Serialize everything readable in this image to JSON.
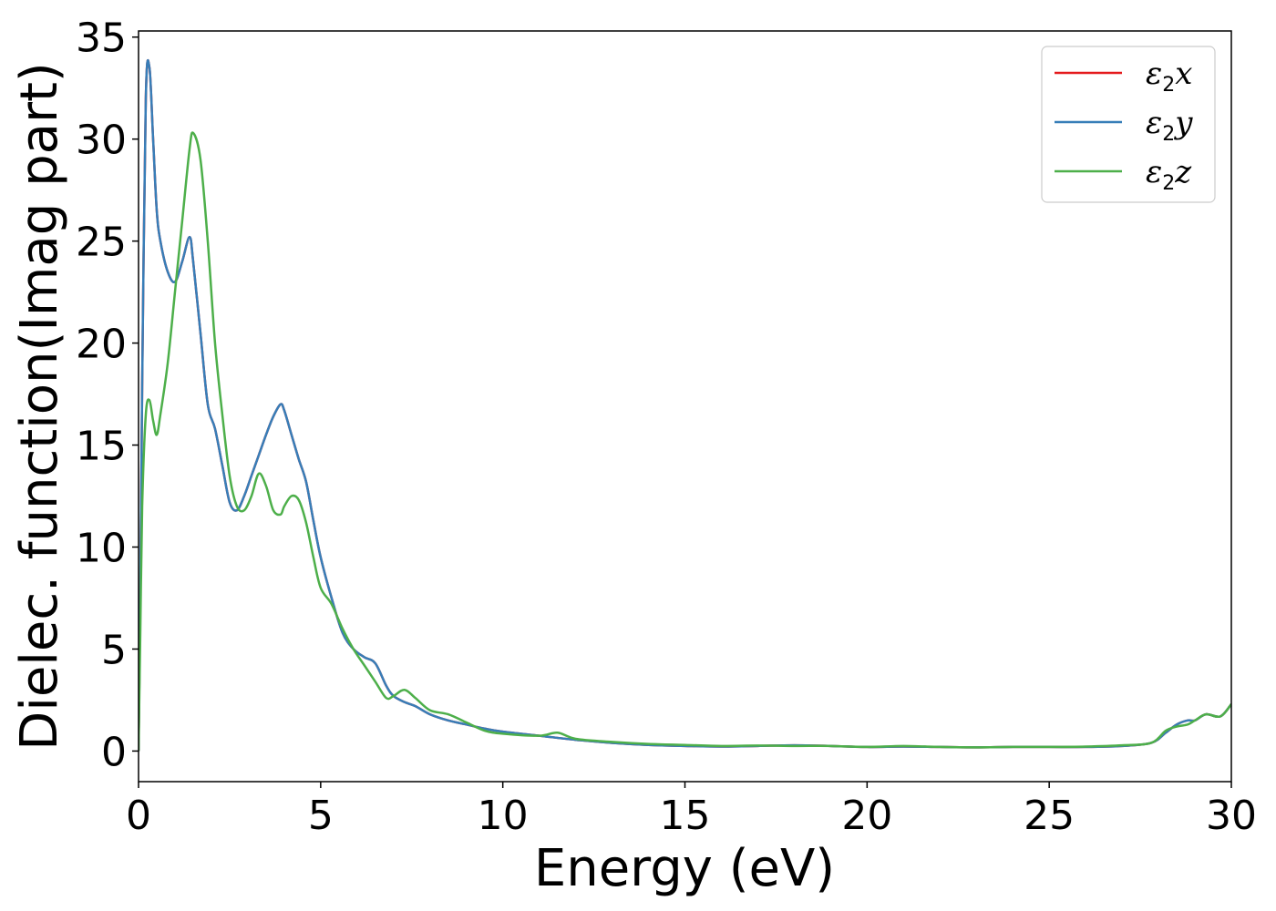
{
  "chart_data": {
    "type": "line",
    "title": "",
    "xlabel": "Energy (eV)",
    "ylabel": "Dielec. function(Imag part)",
    "xlim": [
      0,
      30
    ],
    "ylim": [
      -1.5,
      35.3
    ],
    "xticks": [
      0,
      5,
      10,
      15,
      20,
      25,
      30
    ],
    "yticks": [
      0,
      5,
      10,
      15,
      20,
      25,
      30,
      35
    ],
    "grid": false,
    "legend_position": "top-right",
    "series": [
      {
        "name": "ε2x",
        "legend": {
          "base": "ε",
          "sub": "2",
          "var": "x"
        },
        "color": "#e41a1c",
        "x": [
          0,
          0.05,
          0.1,
          0.2,
          0.3,
          0.4,
          0.5,
          0.6,
          0.8,
          1.0,
          1.2,
          1.4,
          1.5,
          1.7,
          1.9,
          2.1,
          2.3,
          2.5,
          2.7,
          2.9,
          3.1,
          3.3,
          3.5,
          3.7,
          3.9,
          4.0,
          4.2,
          4.4,
          4.6,
          4.8,
          5.0,
          5.3,
          5.6,
          5.9,
          6.2,
          6.5,
          6.8,
          7.0,
          7.3,
          7.6,
          8.0,
          8.5,
          9.0,
          9.5,
          10.0,
          11.0,
          12.0,
          13.0,
          14.0,
          15.0,
          16.0,
          17.0,
          18.0,
          19.0,
          20.0,
          21.0,
          22.0,
          23.0,
          24.0,
          25.0,
          26.0,
          27.0,
          27.8,
          28.2,
          28.5,
          28.8,
          29.0,
          29.3,
          29.7,
          30.0
        ],
        "values": [
          0,
          8,
          18,
          32,
          33.5,
          30,
          26.5,
          25,
          23.5,
          23,
          24,
          25.2,
          24,
          20.5,
          17,
          15.8,
          14,
          12.2,
          11.8,
          12.5,
          13.5,
          14.5,
          15.5,
          16.4,
          17,
          16.7,
          15.5,
          14.3,
          13.2,
          11.3,
          9.5,
          7.5,
          5.8,
          5.0,
          4.6,
          4.3,
          3.2,
          2.7,
          2.4,
          2.2,
          1.8,
          1.5,
          1.3,
          1.1,
          0.95,
          0.75,
          0.55,
          0.4,
          0.3,
          0.25,
          0.22,
          0.25,
          0.28,
          0.25,
          0.2,
          0.22,
          0.2,
          0.18,
          0.2,
          0.2,
          0.2,
          0.25,
          0.4,
          0.9,
          1.3,
          1.5,
          1.5,
          1.8,
          1.7,
          2.3
        ]
      },
      {
        "name": "ε2y",
        "legend": {
          "base": "ε",
          "sub": "2",
          "var": "y"
        },
        "color": "#377eb8",
        "x": [
          0,
          0.05,
          0.1,
          0.2,
          0.3,
          0.4,
          0.5,
          0.6,
          0.8,
          1.0,
          1.2,
          1.4,
          1.5,
          1.7,
          1.9,
          2.1,
          2.3,
          2.5,
          2.7,
          2.9,
          3.1,
          3.3,
          3.5,
          3.7,
          3.9,
          4.0,
          4.2,
          4.4,
          4.6,
          4.8,
          5.0,
          5.3,
          5.6,
          5.9,
          6.2,
          6.5,
          6.8,
          7.0,
          7.3,
          7.6,
          8.0,
          8.5,
          9.0,
          9.5,
          10.0,
          11.0,
          12.0,
          13.0,
          14.0,
          15.0,
          16.0,
          17.0,
          18.0,
          19.0,
          20.0,
          21.0,
          22.0,
          23.0,
          24.0,
          25.0,
          26.0,
          27.0,
          27.8,
          28.2,
          28.5,
          28.8,
          29.0,
          29.3,
          29.7,
          30.0
        ],
        "values": [
          0,
          8,
          18,
          32,
          33.5,
          30,
          26.5,
          25,
          23.5,
          23,
          24,
          25.2,
          24,
          20.5,
          17,
          15.8,
          14,
          12.2,
          11.8,
          12.5,
          13.5,
          14.5,
          15.5,
          16.4,
          17,
          16.7,
          15.5,
          14.3,
          13.2,
          11.3,
          9.5,
          7.5,
          5.8,
          5.0,
          4.6,
          4.3,
          3.2,
          2.7,
          2.4,
          2.2,
          1.8,
          1.5,
          1.3,
          1.1,
          0.95,
          0.75,
          0.55,
          0.4,
          0.3,
          0.25,
          0.22,
          0.25,
          0.28,
          0.25,
          0.2,
          0.22,
          0.2,
          0.18,
          0.2,
          0.2,
          0.2,
          0.25,
          0.4,
          0.9,
          1.3,
          1.5,
          1.5,
          1.8,
          1.7,
          2.3
        ]
      },
      {
        "name": "ε2z",
        "legend": {
          "base": "ε",
          "sub": "2",
          "var": "z"
        },
        "color": "#4daf4a",
        "x": [
          0,
          0.05,
          0.1,
          0.2,
          0.3,
          0.4,
          0.5,
          0.6,
          0.8,
          1.0,
          1.2,
          1.4,
          1.5,
          1.7,
          1.9,
          2.1,
          2.3,
          2.5,
          2.7,
          2.9,
          3.1,
          3.3,
          3.5,
          3.7,
          3.9,
          4.0,
          4.2,
          4.4,
          4.6,
          4.8,
          5.0,
          5.3,
          5.6,
          5.9,
          6.2,
          6.5,
          6.8,
          7.0,
          7.3,
          7.6,
          8.0,
          8.5,
          9.0,
          9.5,
          10.0,
          11.0,
          11.5,
          12.0,
          13.0,
          14.0,
          15.0,
          16.0,
          17.0,
          18.0,
          19.0,
          20.0,
          21.0,
          22.0,
          23.0,
          24.0,
          25.0,
          26.0,
          27.0,
          27.8,
          28.2,
          28.5,
          28.8,
          29.0,
          29.3,
          29.7,
          30.0
        ],
        "values": [
          0,
          6,
          12,
          16.5,
          17.2,
          16.2,
          15.5,
          16.5,
          19,
          22.5,
          26,
          29.5,
          30.3,
          29,
          25,
          20,
          16.5,
          13.5,
          12,
          11.8,
          12.5,
          13.6,
          13,
          11.8,
          11.6,
          12,
          12.5,
          12.3,
          11.2,
          9.5,
          8,
          7.2,
          6.0,
          5.0,
          4.2,
          3.4,
          2.6,
          2.7,
          3.0,
          2.6,
          2.0,
          1.8,
          1.4,
          1.0,
          0.85,
          0.75,
          0.9,
          0.6,
          0.45,
          0.35,
          0.3,
          0.25,
          0.27,
          0.25,
          0.25,
          0.2,
          0.25,
          0.2,
          0.18,
          0.2,
          0.2,
          0.22,
          0.28,
          0.4,
          1.0,
          1.2,
          1.3,
          1.5,
          1.8,
          1.7,
          2.3
        ]
      }
    ]
  }
}
